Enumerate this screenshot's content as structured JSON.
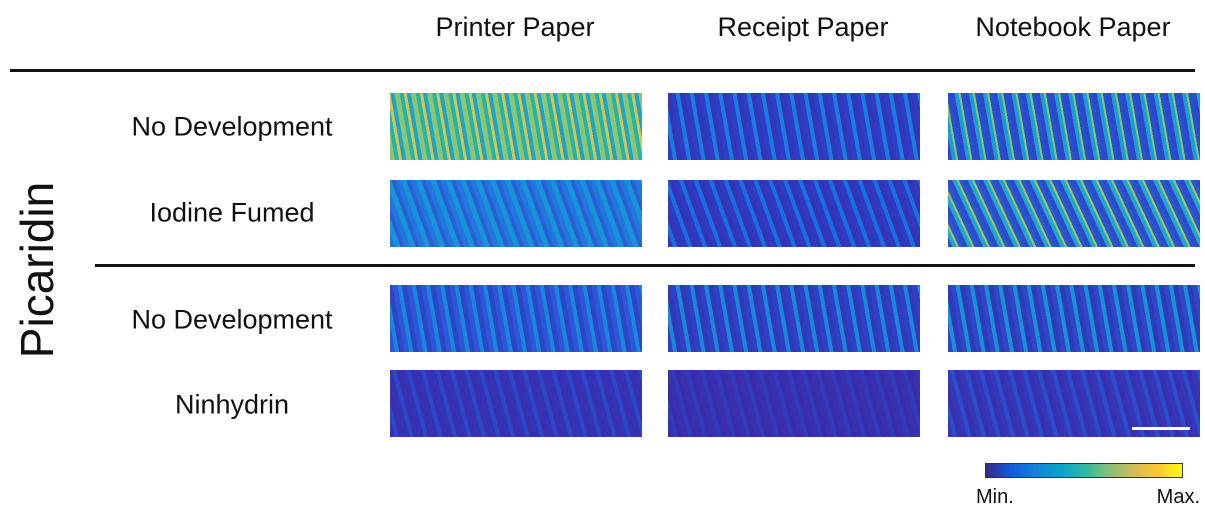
{
  "columns": [
    "Printer Paper",
    "Receipt Paper",
    "Notebook Paper"
  ],
  "side_label": "Picaridin",
  "rows": [
    "No Development",
    "Iodine Fumed",
    "No Development",
    "Ninhydrin"
  ],
  "colorbar": {
    "min_label": "Min.",
    "max_label": "Max."
  }
}
